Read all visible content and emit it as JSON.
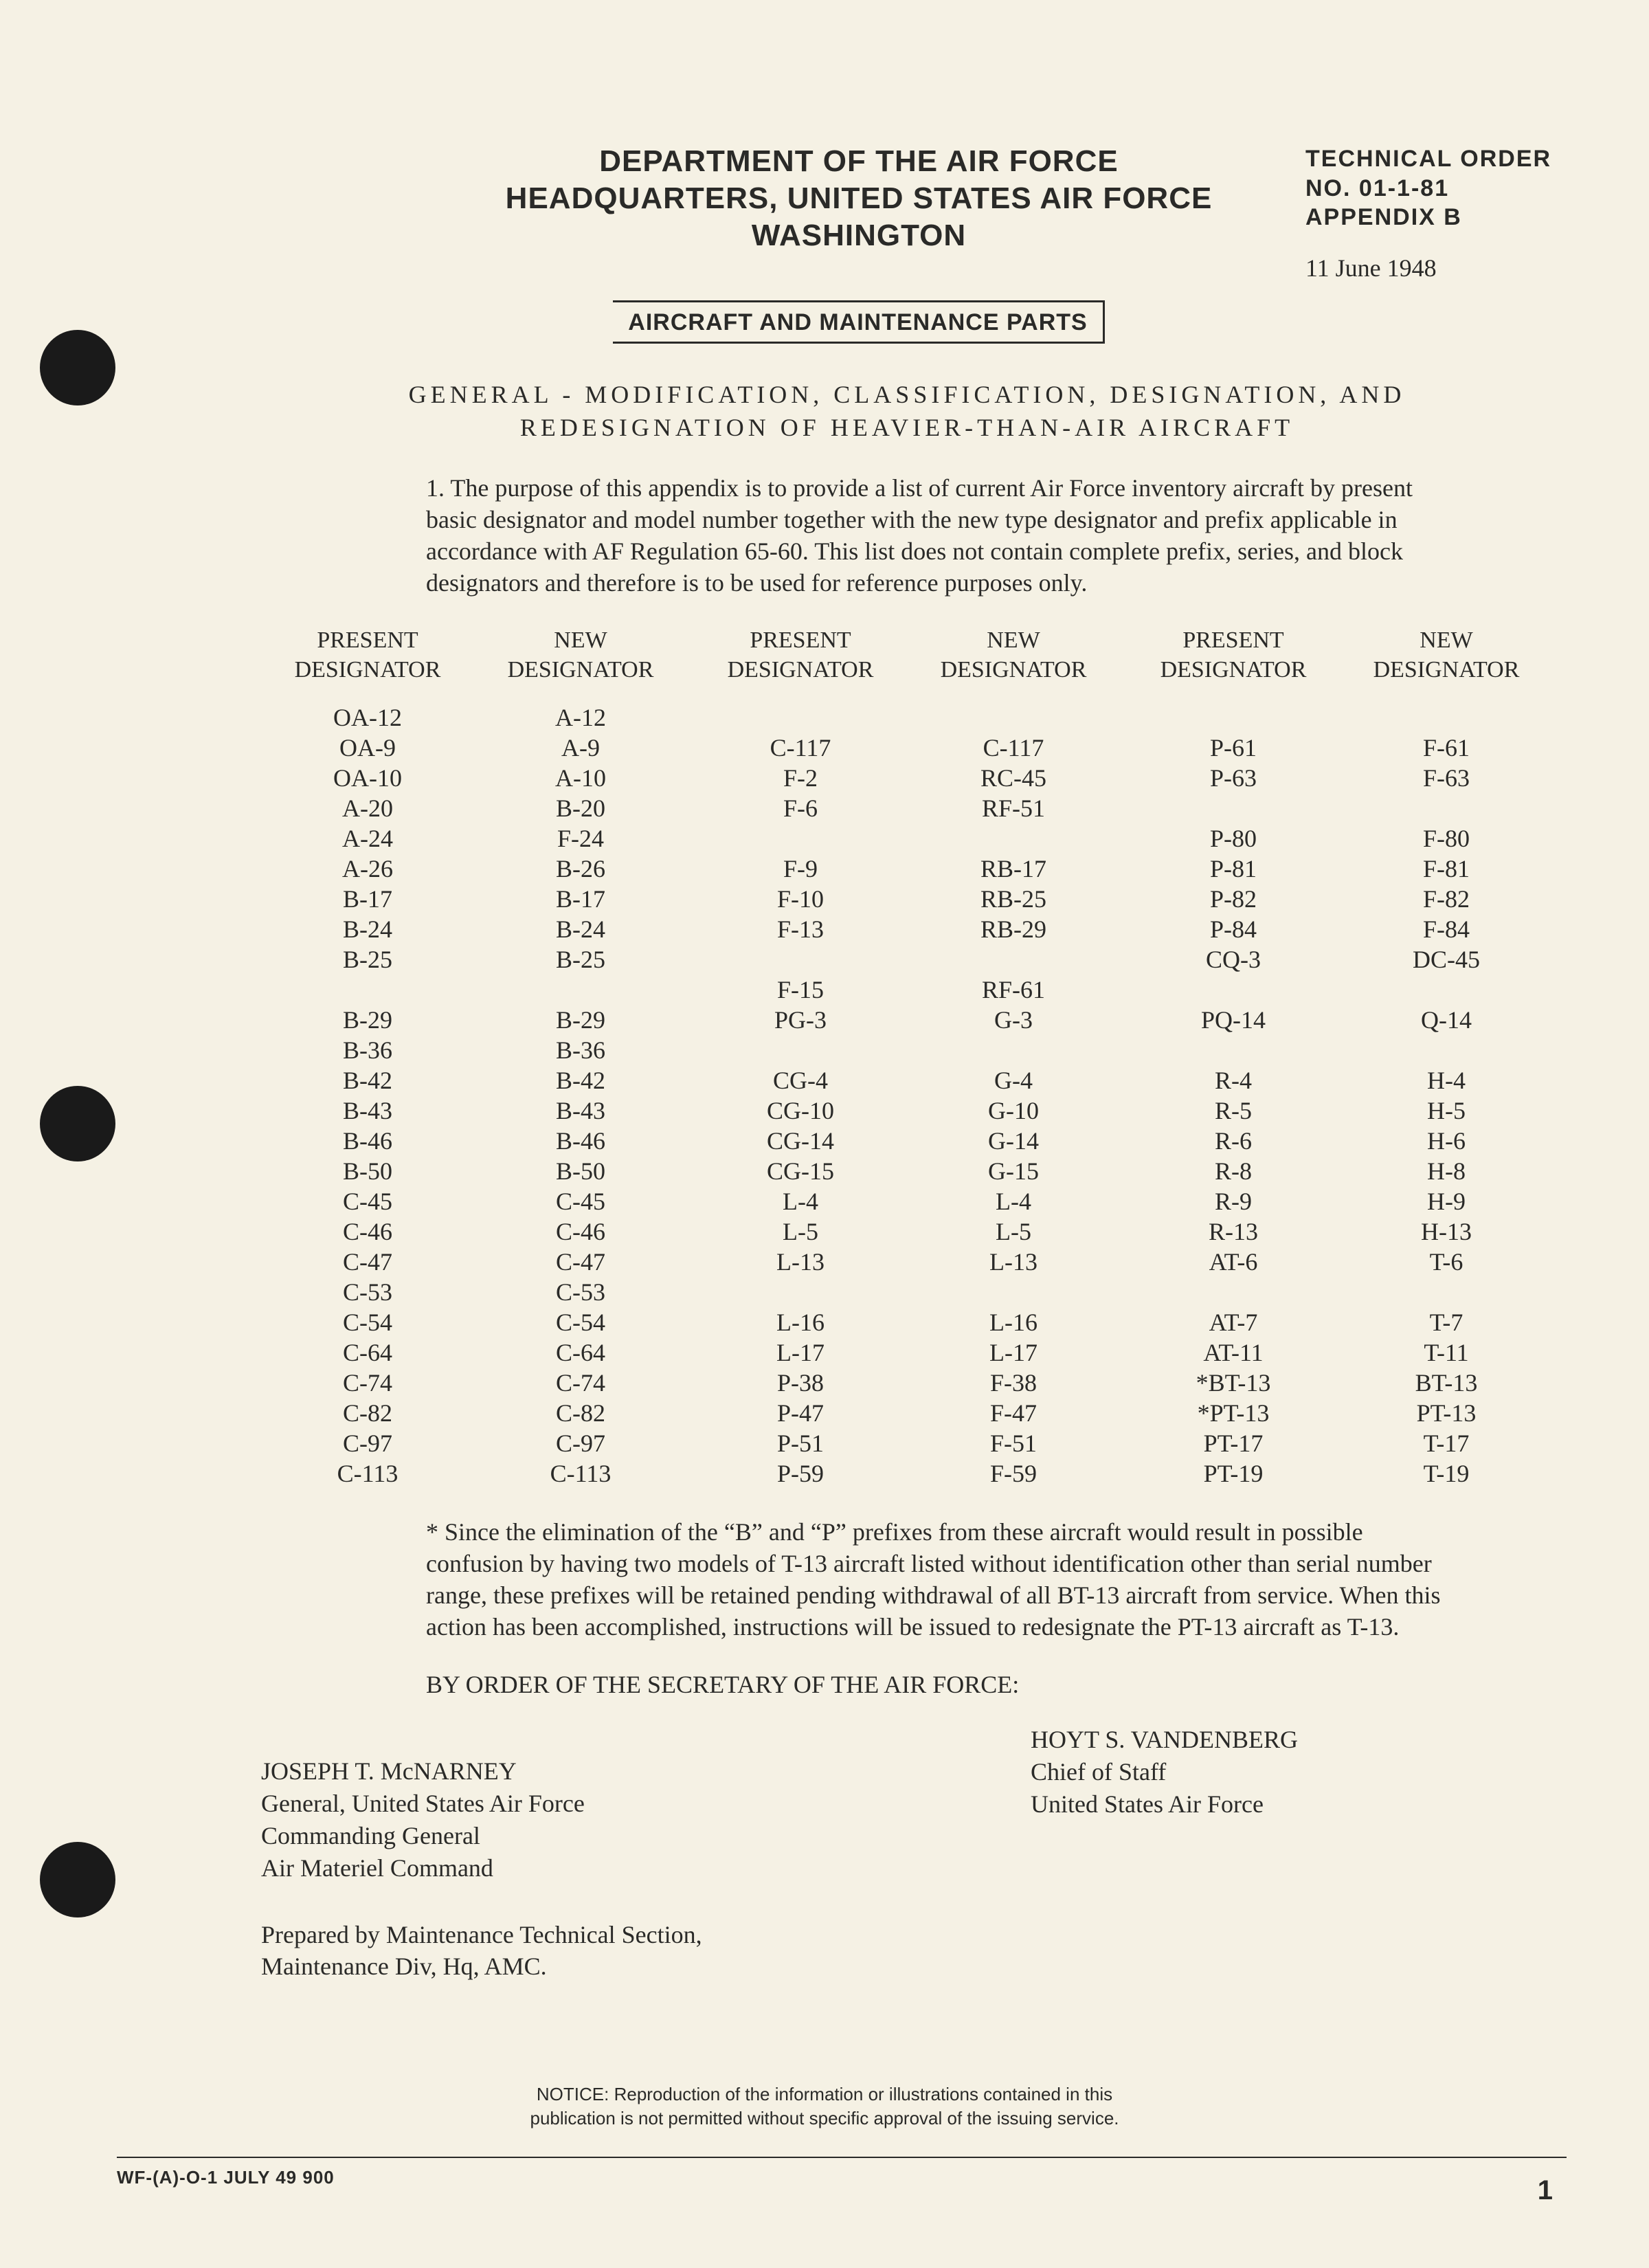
{
  "header": {
    "dept_line1": "DEPARTMENT OF THE AIR FORCE",
    "dept_line2": "HEADQUARTERS, UNITED STATES AIR FORCE",
    "dept_line3": "WASHINGTON",
    "boxed": "AIRCRAFT AND MAINTENANCE PARTS",
    "to_label": "TECHNICAL ORDER",
    "to_no_label": "NO.",
    "to_no": "01-1-81",
    "appendix": "APPENDIX B",
    "date": "11 June 1948"
  },
  "subtitle": {
    "l1": "GENERAL - MODIFICATION, CLASSIFICATION, DESIGNATION, AND",
    "l2": "REDESIGNATION OF HEAVIER-THAN-AIR AIRCRAFT"
  },
  "para1": "1. The purpose of this appendix is to provide a list of current Air Force inventory aircraft by present basic designator and model number together with the new type designator and prefix applicable in accordance with AF Regulation 65-60. This list does not contain complete prefix, series, and block designators and therefore is to be used for reference purposes only.",
  "columns": {
    "h1a": "PRESENT",
    "h1b": "DESIGNATOR",
    "h2a": "NEW",
    "h2b": "DESIGNATOR"
  },
  "group1": [
    [
      "OA-12",
      "A-12"
    ],
    [
      "OA-9",
      "A-9"
    ],
    [
      "OA-10",
      "A-10"
    ],
    [
      "A-20",
      "B-20"
    ],
    [
      "A-24",
      "F-24"
    ],
    [
      "A-26",
      "B-26"
    ],
    [
      "B-17",
      "B-17"
    ],
    [
      "B-24",
      "B-24"
    ],
    [
      "B-25",
      "B-25"
    ],
    [
      "",
      ""
    ],
    [
      "B-29",
      "B-29"
    ],
    [
      "B-36",
      "B-36"
    ],
    [
      "B-42",
      "B-42"
    ],
    [
      "B-43",
      "B-43"
    ],
    [
      "B-46",
      "B-46"
    ],
    [
      "B-50",
      "B-50"
    ],
    [
      "C-45",
      "C-45"
    ],
    [
      "C-46",
      "C-46"
    ],
    [
      "C-47",
      "C-47"
    ],
    [
      "C-53",
      "C-53"
    ],
    [
      "C-54",
      "C-54"
    ],
    [
      "C-64",
      "C-64"
    ],
    [
      "C-74",
      "C-74"
    ],
    [
      "C-82",
      "C-82"
    ],
    [
      "C-97",
      "C-97"
    ],
    [
      "C-113",
      "C-113"
    ]
  ],
  "group2": [
    [
      "",
      ""
    ],
    [
      "C-117",
      "C-117"
    ],
    [
      "F-2",
      "RC-45"
    ],
    [
      "F-6",
      "RF-51"
    ],
    [
      "",
      ""
    ],
    [
      "F-9",
      "RB-17"
    ],
    [
      "F-10",
      "RB-25"
    ],
    [
      "F-13",
      "RB-29"
    ],
    [
      "",
      ""
    ],
    [
      "F-15",
      "RF-61"
    ],
    [
      "PG-3",
      "G-3"
    ],
    [
      "",
      ""
    ],
    [
      "CG-4",
      "G-4"
    ],
    [
      "CG-10",
      "G-10"
    ],
    [
      "CG-14",
      "G-14"
    ],
    [
      "CG-15",
      "G-15"
    ],
    [
      "L-4",
      "L-4"
    ],
    [
      "L-5",
      "L-5"
    ],
    [
      "L-13",
      "L-13"
    ],
    [
      "",
      ""
    ],
    [
      "L-16",
      "L-16"
    ],
    [
      "L-17",
      "L-17"
    ],
    [
      "P-38",
      "F-38"
    ],
    [
      "P-47",
      "F-47"
    ],
    [
      "P-51",
      "F-51"
    ],
    [
      "P-59",
      "F-59"
    ]
  ],
  "group3": [
    [
      "",
      ""
    ],
    [
      "P-61",
      "F-61"
    ],
    [
      "P-63",
      "F-63"
    ],
    [
      "",
      ""
    ],
    [
      "P-80",
      "F-80"
    ],
    [
      "P-81",
      "F-81"
    ],
    [
      "P-82",
      "F-82"
    ],
    [
      "P-84",
      "F-84"
    ],
    [
      "CQ-3",
      "DC-45"
    ],
    [
      "",
      ""
    ],
    [
      "PQ-14",
      "Q-14"
    ],
    [
      "",
      ""
    ],
    [
      "R-4",
      "H-4"
    ],
    [
      "R-5",
      "H-5"
    ],
    [
      "R-6",
      "H-6"
    ],
    [
      "R-8",
      "H-8"
    ],
    [
      "R-9",
      "H-9"
    ],
    [
      "R-13",
      "H-13"
    ],
    [
      "AT-6",
      "T-6"
    ],
    [
      "",
      ""
    ],
    [
      "AT-7",
      "T-7"
    ],
    [
      "AT-11",
      "T-11"
    ],
    [
      "*BT-13",
      "BT-13"
    ],
    [
      "*PT-13",
      "PT-13"
    ],
    [
      "PT-17",
      "T-17"
    ],
    [
      "PT-19",
      "T-19"
    ]
  ],
  "footnote": "* Since the elimination of the “B” and “P” prefixes from these aircraft would result in possible confusion by having two models of T-13 aircraft listed without identification other than serial number range, these prefixes will be retained pending withdrawal of all BT-13 aircraft from service. When this action has been accomplished, instructions will be issued to redesignate the PT-13 aircraft as T-13.",
  "order": "BY ORDER OF THE SECRETARY OF THE AIR FORCE:",
  "sig_right": {
    "name": "HOYT S. VANDENBERG",
    "title1": "Chief of Staff",
    "title2": "United States Air Force"
  },
  "sig_left": {
    "name": "JOSEPH T. McNARNEY",
    "t1": "General, United States Air Force",
    "t2": "Commanding General",
    "t3": "Air Materiel Command"
  },
  "prepared": {
    "l1": "Prepared by Maintenance Technical Section,",
    "l2": "Maintenance Div, Hq, AMC."
  },
  "notice": {
    "l1": "NOTICE: Reproduction of the information or illustrations contained in this",
    "l2": "publication is not permitted without specific approval of the issuing service."
  },
  "wfcode": "WF-(A)-O-1  JULY 49  900",
  "pagenum": "1"
}
